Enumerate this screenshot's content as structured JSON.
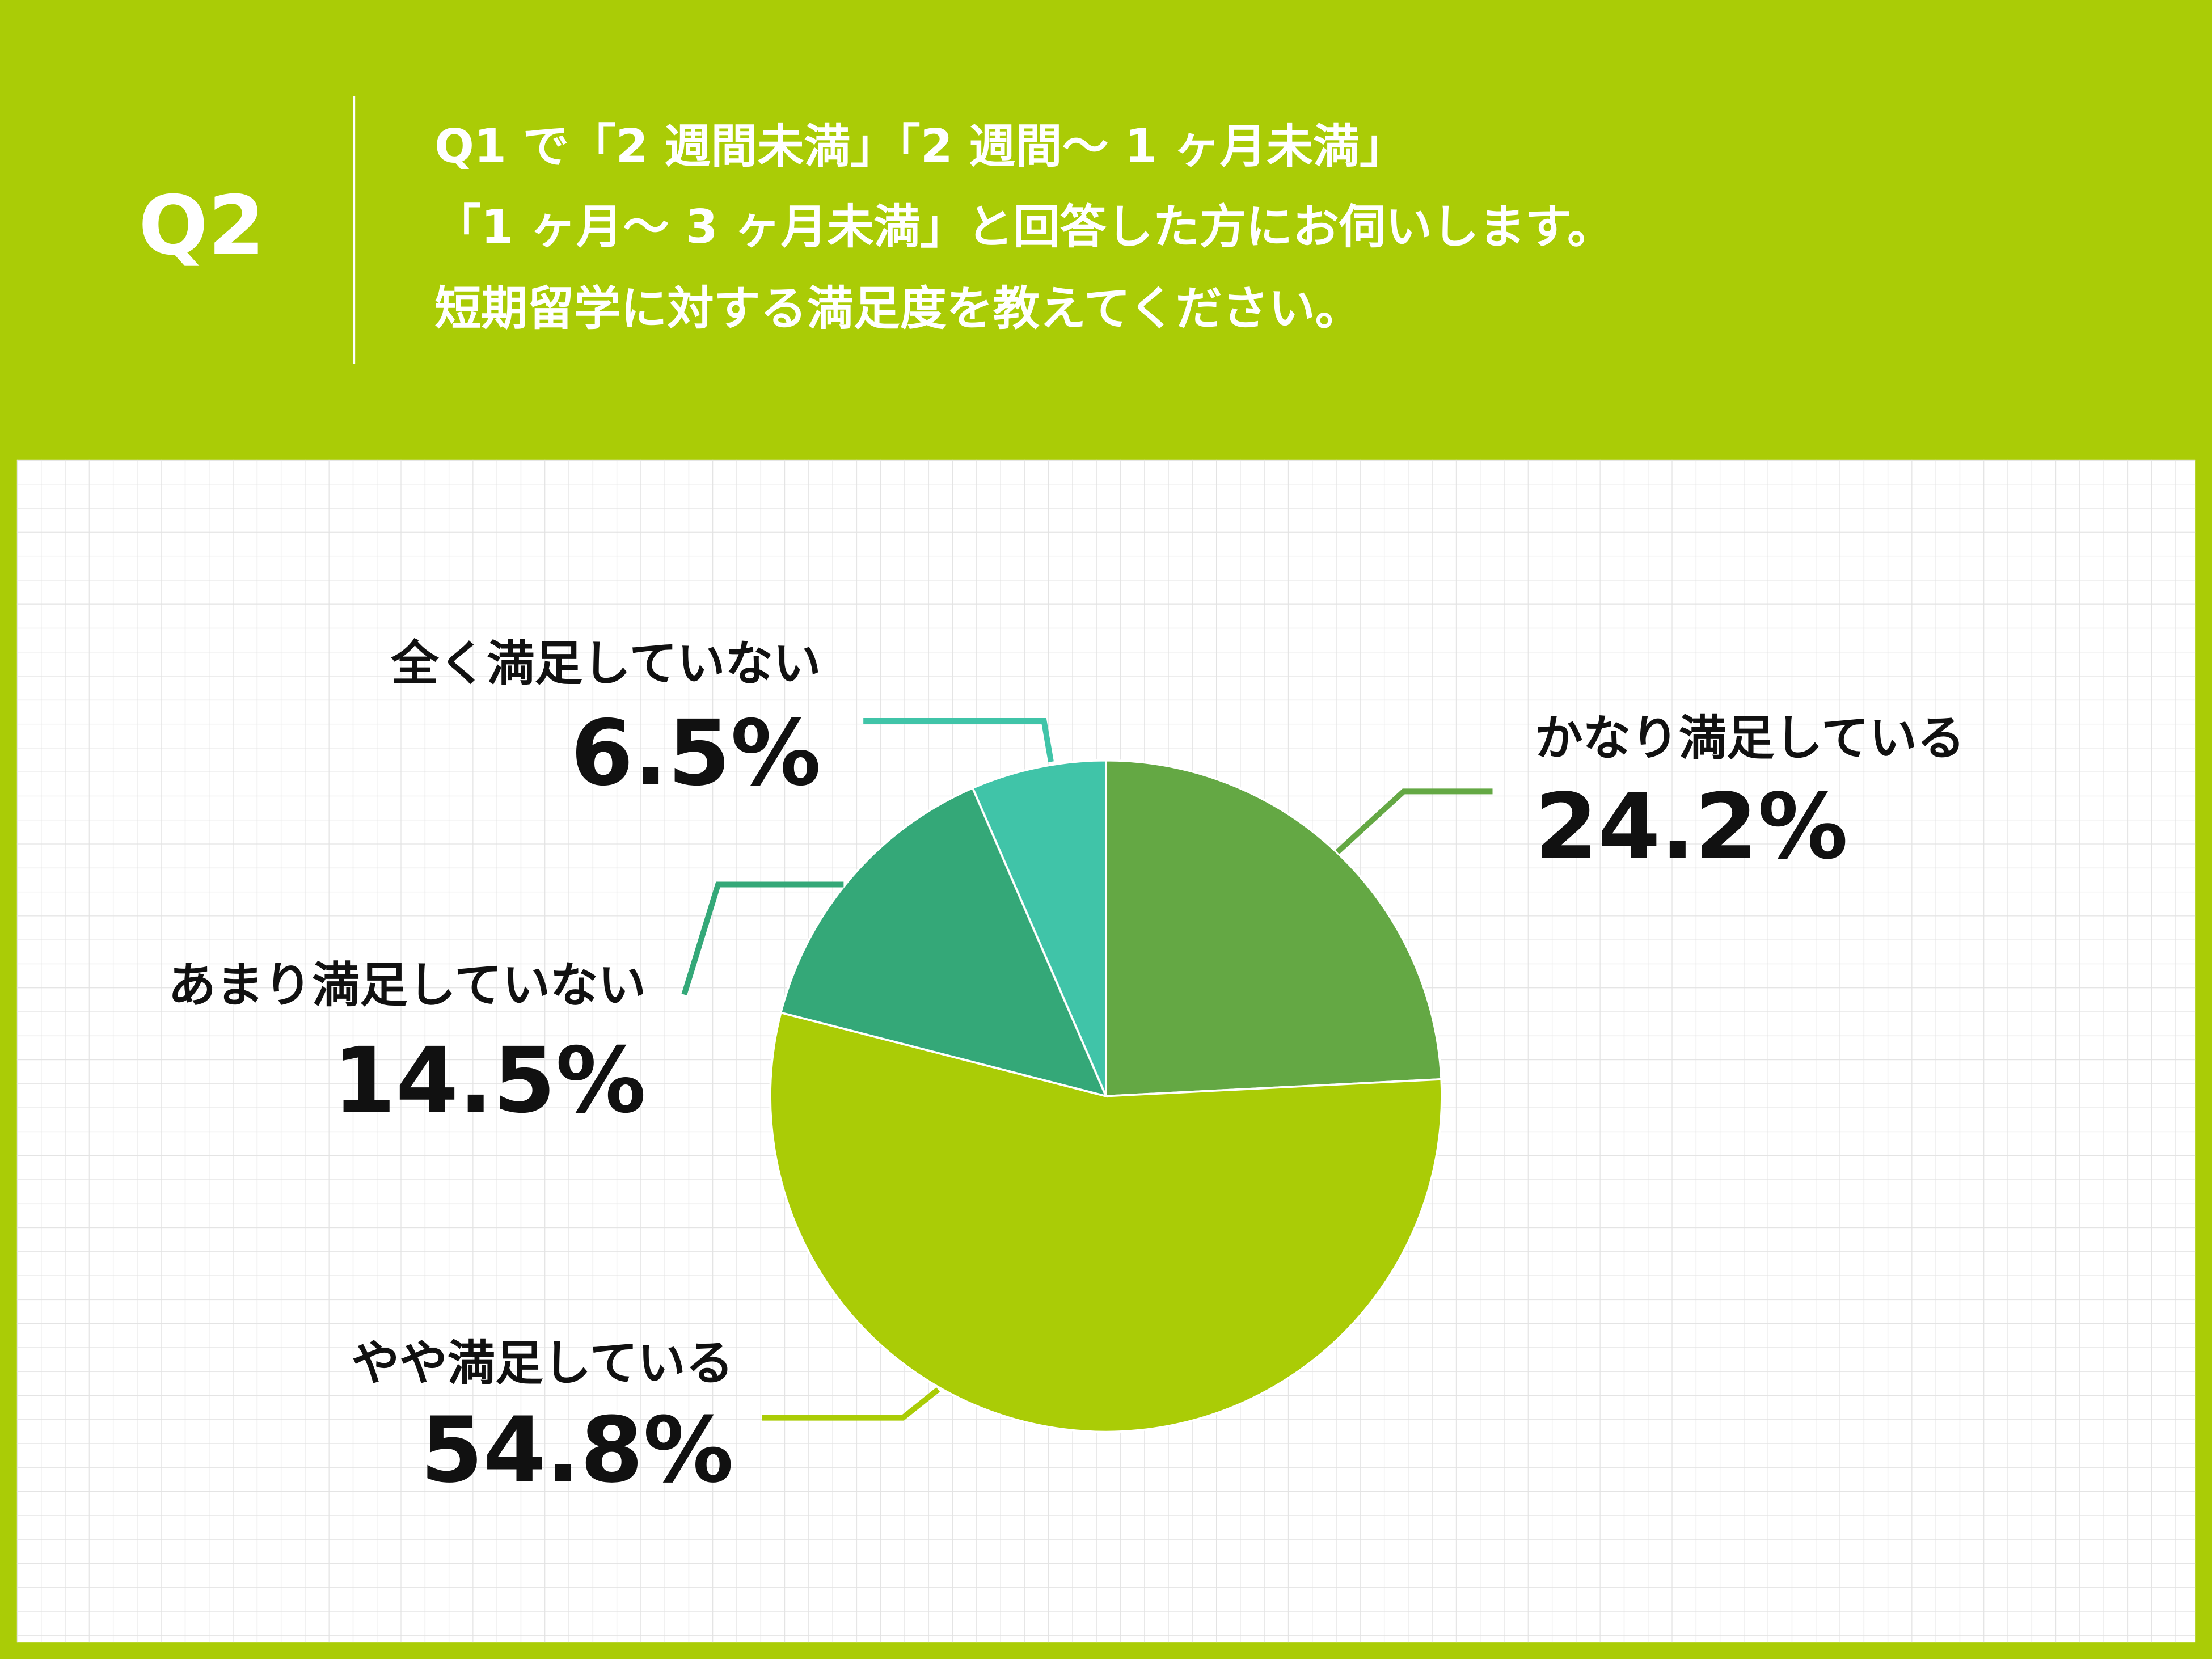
{
  "header": {
    "badge": "Q2",
    "lines": [
      "Q1 で「2 週間未満」「2 週間〜 1 ヶ月未満」",
      "「1 ヶ月〜 3 ヶ月未満」と回答した方にお伺いします。",
      "短期留学に対する満足度を教えてください。"
    ]
  },
  "chart_data": {
    "type": "pie",
    "categories": [
      "かなり満足している",
      "やや満足している",
      "あまり満足していない",
      "全く満足していない"
    ],
    "values": [
      24.2,
      54.8,
      14.5,
      6.5
    ],
    "value_labels": [
      "24.2%",
      "54.8%",
      "14.5%",
      "6.5%"
    ],
    "colors": [
      "#64a844",
      "#aacc06",
      "#34a878",
      "#40c4a8"
    ]
  }
}
